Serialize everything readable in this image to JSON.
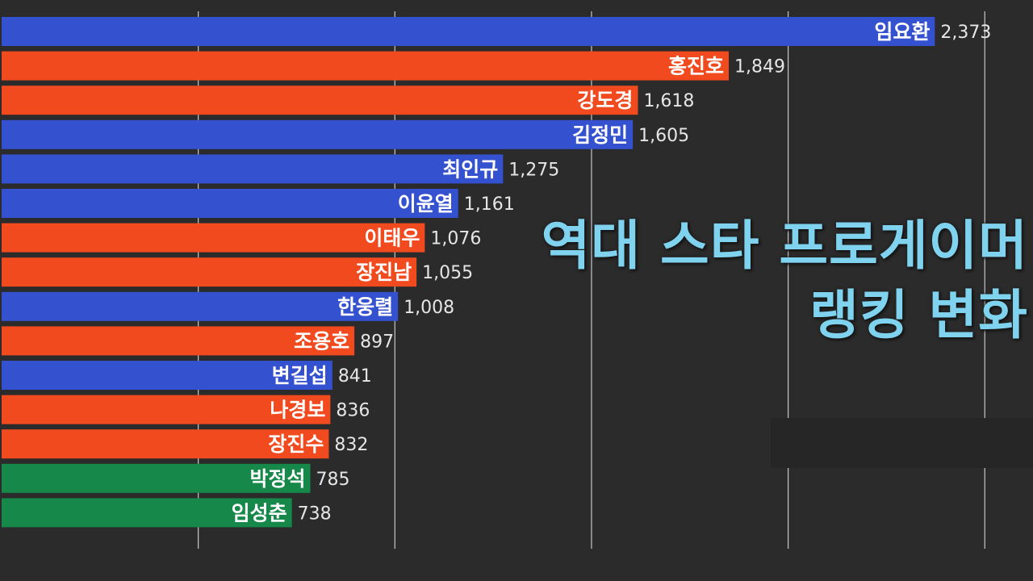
{
  "title": {
    "line1": "역대 스타 프로게이머",
    "line2": "랭킹 변화"
  },
  "colors": {
    "blue": "#3451cf",
    "red": "#f24a1f",
    "green": "#15884a",
    "background": "#2b2b2b",
    "title": "#7fd3ee"
  },
  "chart_data": {
    "type": "bar",
    "orientation": "horizontal",
    "title": "역대 스타 프로게이머 랭킹 변화",
    "xlim": [
      0,
      2700
    ],
    "grid": true,
    "categories": [
      "임요환",
      "홍진호",
      "강도경",
      "김정민",
      "최인규",
      "이윤열",
      "이태우",
      "장진남",
      "한웅렬",
      "조용호",
      "변길섭",
      "나경보",
      "장진수",
      "박정석",
      "임성춘"
    ],
    "values": [
      2373,
      1849,
      1618,
      1605,
      1275,
      1161,
      1076,
      1055,
      1008,
      897,
      841,
      836,
      832,
      785,
      738
    ],
    "value_labels": [
      "2,373",
      "1,849",
      "1,618",
      "1,605",
      "1,275",
      "1,161",
      "1,076",
      "1,055",
      "1,008",
      "897",
      "841",
      "836",
      "832",
      "785",
      "738"
    ],
    "bar_colors": [
      "blue",
      "red",
      "red",
      "blue",
      "blue",
      "blue",
      "red",
      "red",
      "blue",
      "red",
      "blue",
      "red",
      "red",
      "green",
      "green"
    ]
  }
}
